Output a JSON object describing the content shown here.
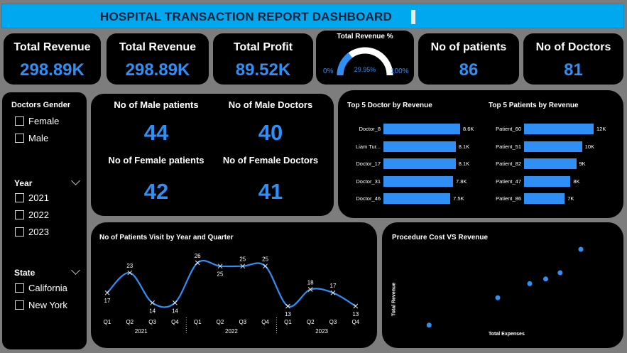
{
  "header": {
    "title": "HOSPITAL TRANSACTION REPORT DASHBOARD"
  },
  "kpis": {
    "total_revenue_1": {
      "label": "Total Revenue",
      "value": "298.89K"
    },
    "total_revenue_2": {
      "label": "Total Revenue",
      "value": "298.89K"
    },
    "total_profit": {
      "label": "Total Profit",
      "value": "89.52K"
    },
    "revenue_pct": {
      "label": "Total Revenue %",
      "value": "29.95%",
      "min": "0%",
      "max": "100%",
      "fraction": 0.2995
    },
    "patients": {
      "label": "No of patients",
      "value": "86"
    },
    "doctors": {
      "label": "No of Doctors",
      "value": "81"
    }
  },
  "slicers": {
    "gender": {
      "title": "Doctors Gender",
      "items": [
        "Female",
        "Male"
      ]
    },
    "year": {
      "title": "Year",
      "items": [
        "2021",
        "2022",
        "2023"
      ]
    },
    "state": {
      "title": "State",
      "items": [
        "California",
        "New York"
      ]
    }
  },
  "stats": {
    "male_patients": {
      "label": "No of Male patients",
      "value": "44"
    },
    "male_doctors": {
      "label": "No of Male Doctors",
      "value": "40"
    },
    "female_patients": {
      "label": "No of Female patients",
      "value": "42"
    },
    "female_doctors": {
      "label": "No of Female Doctors",
      "value": "41"
    }
  },
  "colors": {
    "accent": "#2f8ff5",
    "title_bar": "#00a8f0",
    "card": "#000000",
    "background": "#7d7d7d"
  },
  "chart_data": [
    {
      "type": "bar",
      "title": "Top 5 Doctor by Revenue",
      "orientation": "horizontal",
      "categories": [
        "Doctor_8",
        "Liam Tur...",
        "Doctor_17",
        "Doctor_31",
        "Doctor_46"
      ],
      "values": [
        8.6,
        8.1,
        8.1,
        7.8,
        7.5
      ],
      "labels": [
        "8.6K",
        "8.1K",
        "8.1K",
        "7.8K",
        "7.5K"
      ]
    },
    {
      "type": "bar",
      "title": "Top 5 Patients by Revenue",
      "orientation": "horizontal",
      "categories": [
        "Patient_60",
        "Patient_51",
        "Patient_82",
        "Patient_47",
        "Patient_86"
      ],
      "values": [
        12,
        10,
        9,
        8,
        7
      ],
      "labels": [
        "12K",
        "10K",
        "9K",
        "8K",
        "7K"
      ]
    },
    {
      "type": "line",
      "title": "No of Patients Visit by Year and Quarter",
      "x": [
        "Q1",
        "Q2",
        "Q3",
        "Q4",
        "Q1",
        "Q2",
        "Q3",
        "Q4",
        "Q1",
        "Q2",
        "Q3",
        "Q4"
      ],
      "groups": [
        "2021",
        "2022",
        "2023"
      ],
      "values": [
        17,
        23,
        14,
        14,
        26,
        25,
        25,
        25,
        13,
        18,
        17,
        13
      ],
      "ylim": [
        10,
        28
      ]
    },
    {
      "type": "scatter",
      "title": "Procedure Cost VS Revenue",
      "xlabel": "Total Expenses",
      "ylabel": "Total Revenue",
      "points": [
        [
          0.05,
          0.03
        ],
        [
          0.48,
          0.38
        ],
        [
          0.68,
          0.56
        ],
        [
          0.78,
          0.62
        ],
        [
          0.87,
          0.7
        ],
        [
          1.0,
          1.0
        ]
      ]
    }
  ]
}
